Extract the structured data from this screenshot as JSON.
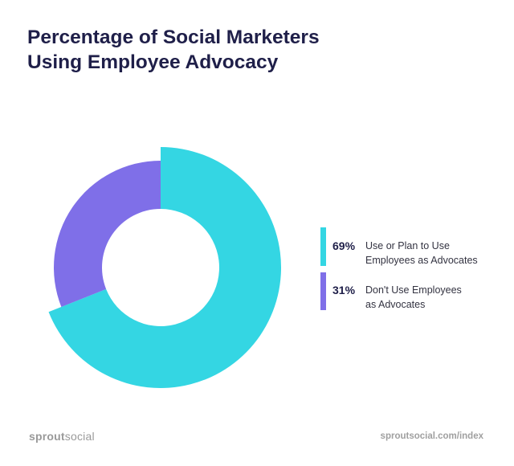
{
  "chart_data": {
    "type": "pie",
    "title": [
      "Percentage of Social Marketers",
      "Using Employee Advocacy"
    ],
    "slices": [
      {
        "value": 69,
        "percent_label": "69%",
        "label_lines": [
          "Use or Plan to Use",
          "Employees as Advocates"
        ],
        "color": "#34d6e3"
      },
      {
        "value": 31,
        "percent_label": "31%",
        "label_lines": [
          "Don't Use Employees",
          "as Advocates"
        ],
        "color": "#7f6fe8"
      }
    ],
    "legend_position": "right"
  },
  "footer": {
    "brand_part1": "sprout",
    "brand_part2": "social",
    "url": "sproutsocial.com/index"
  }
}
